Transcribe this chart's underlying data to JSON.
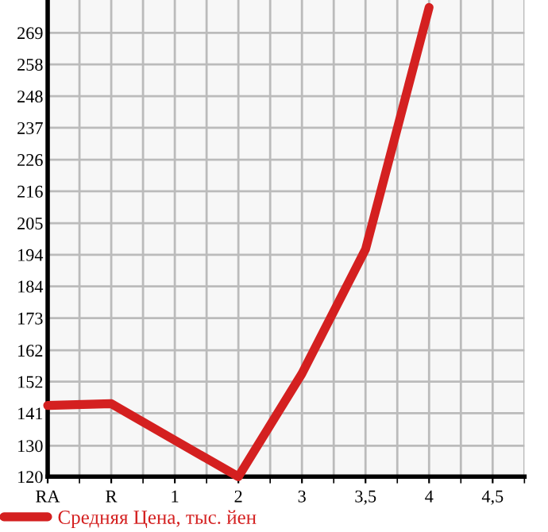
{
  "chart_data": {
    "type": "line",
    "categories": [
      "RA",
      "R",
      "1",
      "2",
      "3",
      "3,5",
      "4",
      "4,5"
    ],
    "series": [
      {
        "name": "Средняя Цена, тыс. йен",
        "color": "#d42020",
        "values": [
          143.9,
          144.5,
          132.2,
          120,
          154.6,
          196.3,
          277.5,
          null
        ]
      }
    ],
    "ylim": [
      120,
      280
    ],
    "yticks": [
      {
        "value": 120,
        "label": "120"
      },
      {
        "value": 130.4,
        "label": "130"
      },
      {
        "value": 141.3,
        "label": "141"
      },
      {
        "value": 151.9,
        "label": "152"
      },
      {
        "value": 162.4,
        "label": "162"
      },
      {
        "value": 173.2,
        "label": "173"
      },
      {
        "value": 183.9,
        "label": "184"
      },
      {
        "value": 194.5,
        "label": "194"
      },
      {
        "value": 205.1,
        "label": "205"
      },
      {
        "value": 215.8,
        "label": "216"
      },
      {
        "value": 226.4,
        "label": "226"
      },
      {
        "value": 237.1,
        "label": "237"
      },
      {
        "value": 247.7,
        "label": "248"
      },
      {
        "value": 258.4,
        "label": "258"
      },
      {
        "value": 269.0,
        "label": "269"
      }
    ],
    "grid": true,
    "legend": "bottom left",
    "marker": "none",
    "line_style": "solid"
  }
}
